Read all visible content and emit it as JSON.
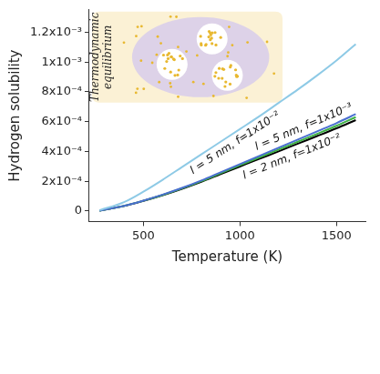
{
  "chart_data": {
    "type": "line",
    "x_label": "Temperature (K)",
    "y_label": "Hydrogen solubility",
    "annotations": [
      "Thermodynamic equilibrium"
    ],
    "x": [
      273,
      400,
      500,
      600,
      700,
      800,
      900,
      1000,
      1100,
      1200,
      1300,
      1400,
      1500,
      1600
    ],
    "series": [
      {
        "name": "l = 5 nm, f=1x10⁻²",
        "color": "#8ecae6",
        "values": [
          5e-06,
          6e-05,
          0.00013,
          0.00021,
          0.000295,
          0.00038,
          0.000465,
          0.00055,
          0.000635,
          0.000725,
          0.000815,
          0.00091,
          0.00101,
          0.00112
        ]
      },
      {
        "name": "l = 5 nm, f=1x10⁻³",
        "color": "#4a6fd0",
        "values": [
          3e-06,
          3.5e-05,
          7e-05,
          0.00011,
          0.000155,
          0.000205,
          0.00026,
          0.000315,
          0.00037,
          0.000425,
          0.00048,
          0.000535,
          0.00059,
          0.00065
        ]
      },
      {
        "name": "l = 2 nm, f=1x10⁻²",
        "color": "#3cb043",
        "values": [
          3e-06,
          3.5e-05,
          6.9e-05,
          0.000108,
          0.000152,
          0.0002,
          0.000254,
          0.000307,
          0.00036,
          0.000412,
          0.000465,
          0.000518,
          0.000572,
          0.00063
        ]
      },
      {
        "name": null,
        "color": "#000000",
        "values": [
          3e-06,
          3.4e-05,
          6.8e-05,
          0.000106,
          0.000149,
          0.000196,
          0.000248,
          0.000299,
          0.00035,
          0.0004,
          0.000452,
          0.000503,
          0.000555,
          0.00061
        ]
      }
    ],
    "xlim": [
      220,
      1650
    ],
    "xticks": [
      500,
      1000,
      1500
    ],
    "ylim": [
      -7e-05,
      0.00135
    ],
    "yticks": [
      0,
      {
        "value": 0.0002,
        "label": "2x10⁻⁴"
      },
      {
        "value": 0.0004,
        "label": "4x10⁻⁴"
      },
      {
        "value": 0.0006,
        "label": "6x10⁻⁴"
      },
      {
        "value": 0.0008,
        "label": "8x10⁻⁴"
      },
      {
        "value": 0.001,
        "label": "1x10⁻³"
      },
      {
        "value": 0.0012,
        "label": "1.2x10⁻³"
      }
    ],
    "grid": false,
    "marker": "none"
  }
}
